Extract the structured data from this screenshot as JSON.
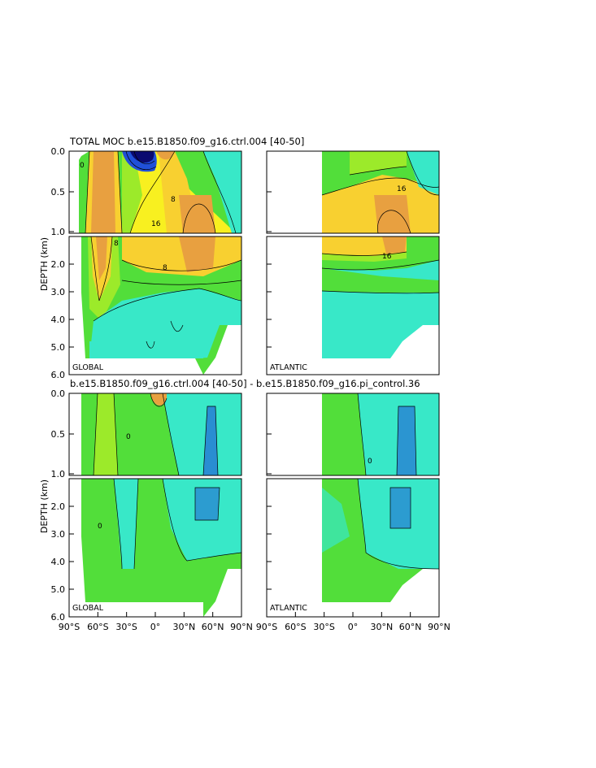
{
  "chart_data": [
    {
      "type": "heatmap",
      "title": "TOTAL MOC b.e15.B1850.f09_g16.ctrl.004  [40-50]",
      "ylabel": "DEPTH (km)",
      "y_ticks": [
        "0.0",
        "0.5",
        "1.0",
        "2.0",
        "3.0",
        "4.0",
        "5.0",
        "6.0"
      ],
      "x_ticks": [],
      "panels": [
        {
          "region": "GLOBAL",
          "xlim": [
            -90,
            90
          ],
          "ylim_km": [
            0,
            6
          ]
        },
        {
          "region": "ATLANTIC",
          "xlim": [
            -90,
            90
          ],
          "ylim_km": [
            0,
            6
          ]
        }
      ],
      "contour_labels": [
        {
          "text": "16"
        },
        {
          "text": "8"
        },
        {
          "text": "0"
        }
      ]
    },
    {
      "type": "heatmap",
      "title": "b.e15.B1850.f09_g16.ctrl.004  [40-50]  -  b.e15.B1850.f09_g16.pi_control.36",
      "ylabel": "DEPTH (km)",
      "y_ticks": [
        "0.0",
        "0.5",
        "1.0",
        "2.0",
        "3.0",
        "4.0",
        "5.0",
        "6.0"
      ],
      "x_ticks": [
        "90°S",
        "60°S",
        "30°S",
        "0°",
        "30°N",
        "60°N",
        "90°N"
      ],
      "panels": [
        {
          "region": "GLOBAL",
          "xlim": [
            -90,
            90
          ],
          "ylim_km": [
            0,
            6
          ]
        },
        {
          "region": "ATLANTIC",
          "xlim": [
            -90,
            90
          ],
          "ylim_km": [
            0,
            6
          ]
        }
      ],
      "contour_labels": [
        {
          "text": "0"
        }
      ]
    }
  ],
  "colors": {
    "white": "#ffffff",
    "cyan": "#38e8c8",
    "green": "#52de3a",
    "lightgreen": "#9cea2a",
    "yellow": "#f8f020",
    "gold": "#f8d030",
    "orange": "#e8a040",
    "blue": "#2050d8",
    "navy": "#0a0a70"
  }
}
